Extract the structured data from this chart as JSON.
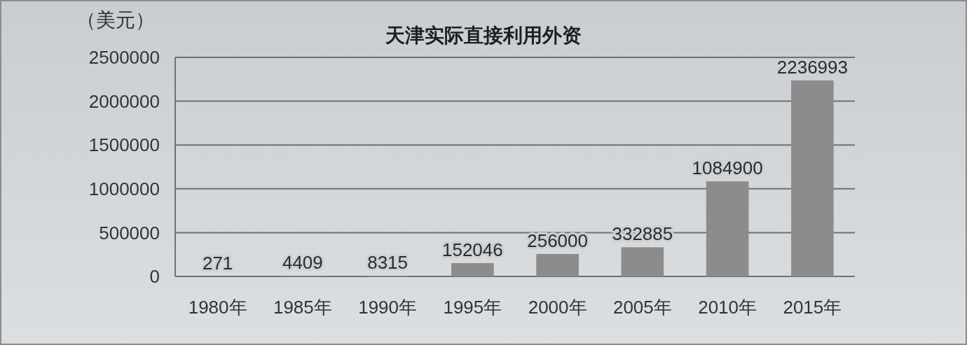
{
  "chart_data": {
    "type": "bar",
    "title": "天津实际直接利用外资",
    "ylabel": "（美元）",
    "categories": [
      "1980年",
      "1985年",
      "1990年",
      "1995年",
      "2000年",
      "2005年",
      "2010年",
      "2015年"
    ],
    "values": [
      271,
      4409,
      8315,
      152046,
      256000,
      332885,
      1084900,
      2236993
    ],
    "color": "#8c8c8c",
    "ylim": [
      0,
      2500000
    ],
    "yticks": [
      0,
      500000,
      1000000,
      1500000,
      2000000,
      2500000
    ],
    "grid": "y",
    "data_labels": true
  }
}
